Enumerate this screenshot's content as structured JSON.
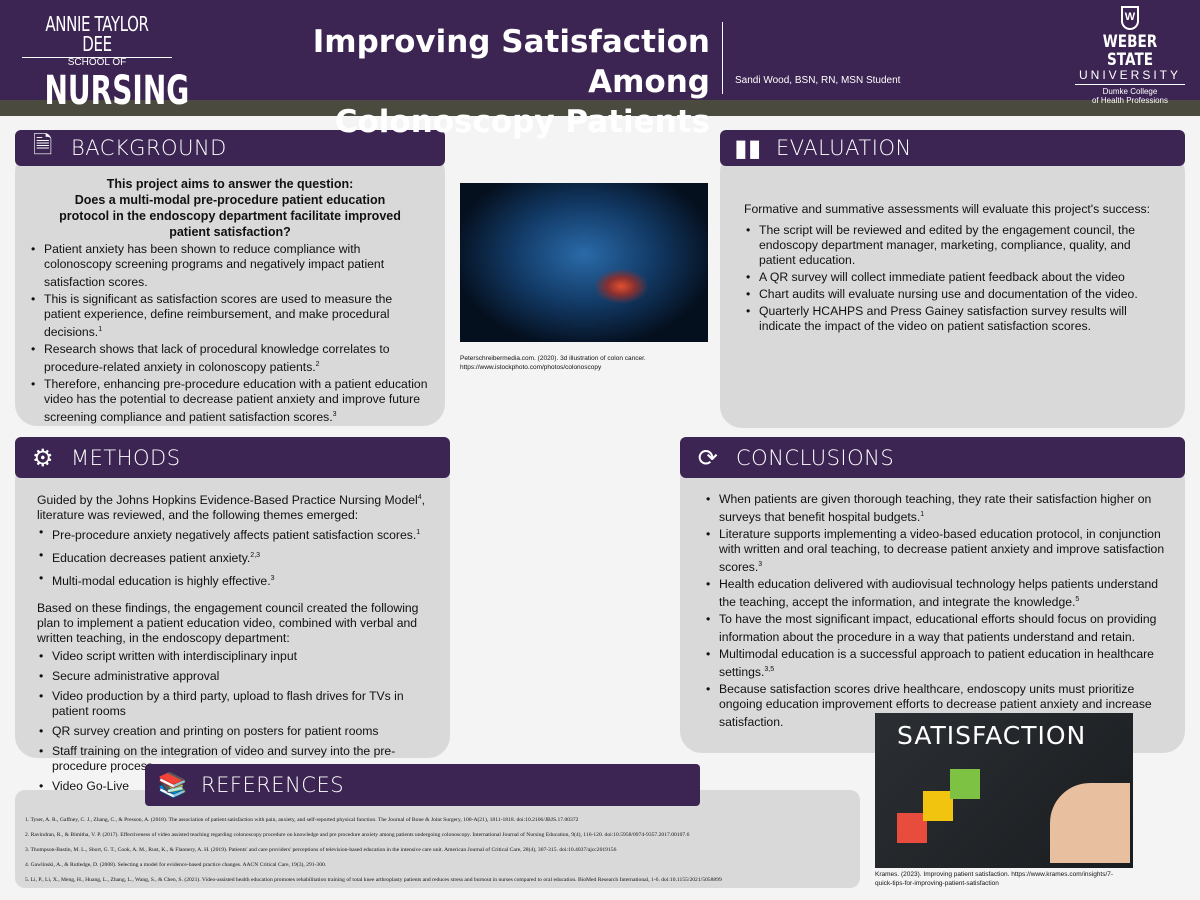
{
  "header": {
    "logo_left": {
      "line1": "ANNIE TAYLOR DEE",
      "line2": "SCHOOL OF",
      "line3": "NURSING"
    },
    "title_line1": "Improving Satisfaction Among",
    "title_line2": "Colonoscopy Patients",
    "author": "Sandi Wood, BSN, RN, MSN Student",
    "logo_right": {
      "line1": "WEBER STATE",
      "line2": "UNIVERSITY",
      "line3": "Dumke College",
      "line4": "of Health Professions",
      "shield": "W"
    }
  },
  "background": {
    "title": "BACKGROUND",
    "icon": "document-icon",
    "question_intro": "This project aims to answer the question:",
    "question": "Does a multi-modal pre-procedure patient education protocol in the endoscopy department facilitate improved patient satisfaction?",
    "bullets": [
      {
        "text": "Patient anxiety has been shown to reduce compliance with colonoscopy screening programs and negatively impact patient satisfaction scores.",
        "sup": ""
      },
      {
        "text": "This is significant as satisfaction scores are used to measure the patient experience, define reimbursement, and make procedural decisions.",
        "sup": "1"
      },
      {
        "text": "Research shows that lack of procedural knowledge correlates to procedure-related anxiety in colonoscopy patients.",
        "sup": "2"
      },
      {
        "text": "Therefore, enhancing pre-procedure education with a patient education video has the potential to decrease patient anxiety and improve future screening compliance and patient satisfaction scores.",
        "sup": "3"
      }
    ]
  },
  "colon_image": {
    "caption1": "Peterschreibermedia.com. (2020). 3d illustration of colon cancer.",
    "caption2": "https://www.istockphoto.com/photos/colonoscopy"
  },
  "evaluation": {
    "title": "EVALUATION",
    "icon": "bar-chart-icon",
    "intro": "Formative and summative assessments will evaluate this project's success:",
    "bullets": [
      "The script will be reviewed and edited by the engagement council, the endoscopy department manager, marketing, compliance, quality, and patient education.",
      "A QR survey will collect immediate patient feedback about the video",
      "Chart audits will evaluate nursing use and documentation of the video.",
      "Quarterly HCAHPS and Press Gainey satisfaction survey results will indicate the impact of the video on patient satisfaction scores."
    ]
  },
  "methods": {
    "title": "METHODS",
    "icon": "gears-icon",
    "intro": "Guided by the Johns Hopkins Evidence-Based Practice Nursing Model",
    "intro_sup": "4",
    "intro_rest": ", literature was reviewed, and the following themes emerged:",
    "themes": [
      {
        "text": "Pre-procedure anxiety negatively affects patient satisfaction scores.",
        "sup": "1"
      },
      {
        "text": "Education decreases patient anxiety.",
        "sup": "2,3"
      },
      {
        "text": "Multi-modal education is highly effective.",
        "sup": "3"
      }
    ],
    "plan_intro": "Based on these findings, the engagement council created the following plan to implement a patient education video, combined with verbal and written teaching, in the endoscopy department:",
    "plan": [
      "Video script written with interdisciplinary input",
      "Secure administrative approval",
      "Video production by a third party, upload to flash drives for TVs in patient rooms",
      "QR survey creation and printing on posters for patient rooms",
      "Staff training on the integration of video and survey into the pre-procedure process",
      "Video Go-Live"
    ]
  },
  "conclusions": {
    "title": "CONCLUSIONS",
    "icon": "cycle-arrows-icon",
    "bullets": [
      {
        "text": "When patients are given thorough teaching, they rate their satisfaction higher on surveys that benefit hospital budgets.",
        "sup": "1"
      },
      {
        "text": "Literature supports implementing a video-based education protocol, in conjunction with written and oral teaching, to decrease patient anxiety and improve satisfaction scores.",
        "sup": "3"
      },
      {
        "text": "Health education delivered with audiovisual technology helps patients understand the teaching, accept the information, and integrate the knowledge.",
        "sup": "5"
      },
      {
        "text": "To have the most significant impact, educational efforts should focus on providing information about the procedure in a way that patients understand and retain.",
        "sup": ""
      },
      {
        "text": "Multimodal education is a successful approach to patient education in healthcare settings.",
        "sup": "3,5"
      },
      {
        "text": "Because satisfaction scores drive healthcare, endoscopy units must prioritize ongoing education improvement efforts to decrease patient anxiety and increase satisfaction.",
        "sup": ""
      }
    ]
  },
  "satisfaction_image": {
    "word": "SATISFACTION",
    "caption1": "Krames. (2023). Improving patient satisfaction. https://www.krames.com/insights/7-",
    "caption2": "quick-tips-for-improving-patient-satisfaction"
  },
  "references": {
    "title": "REFERENCES",
    "icon": "books-icon",
    "items": [
      "1. Tyser, A. R., Gaffney, C. J., Zhang, C., & Presson, A. (2018). The association of patient satisfaction with pain, anxiety, and self-reported physical function. The Journal of Bone & Joint Surgery, 100-A(21), 1811-1818. doi:10.2106/JBJS.17.00372",
      "2. Ravindran, R., & Bimitha, V. P. (2017). Effectiveness of video assisted teaching regarding colonoscopy procedure on knowledge and pre procedure anxiety among patients undergoing colonoscopy. International Journal of Nursing Education, 9(4), 116-120. doi:10.5958/0974-9357.2017.00107.6",
      "3. Thompson-Bastin, M. L., Short, G. T., Cook, A. M., Rust, K., & Flannery, A. H. (2019). Patients' and care providers' perceptions of television-based education in the intensive care unit. American Journal of Critical Care, 28(4), 307-315. doi:10.4037/ajcc2019156",
      "4. Gawlinski, A., & Rutledge, D. (2008). Selecting a model for evidence-based practice changes. AACN Critical Care, 19(3), 291-300.",
      "5. Li, P., Li, X., Meng, H., Huang, L., Zhang, L., Wang, S., & Chen, S. (2021). Video-assisted health education promotes rehabilitation training of total knee arthroplasty patients and reduces stress and burnout in nurses compared to oral education. BioMed Research International, 1-6. doi:10.1155/2021/5058899"
    ]
  }
}
